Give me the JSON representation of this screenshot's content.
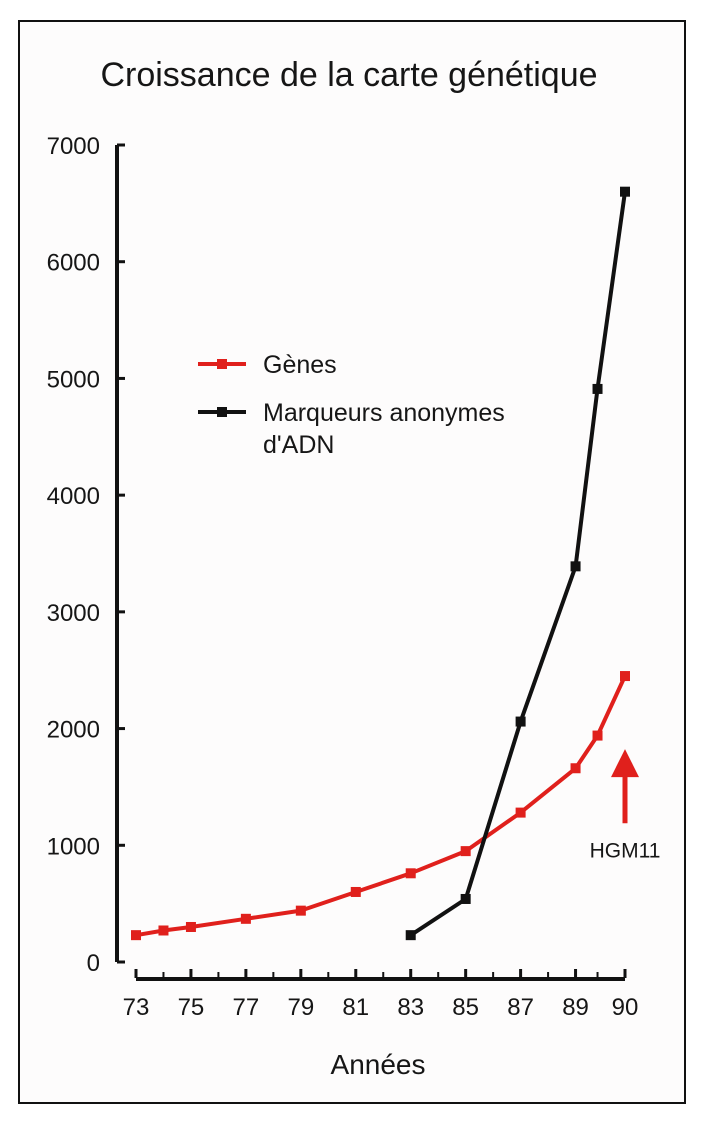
{
  "chart_data": {
    "type": "line",
    "title": "Croissance de la carte génétique",
    "xlabel": "Années",
    "ylabel": "",
    "ylim": [
      0,
      7000
    ],
    "y_ticks": [
      "0",
      "1000",
      "2000",
      "3000",
      "4000",
      "5000",
      "6000",
      "7000"
    ],
    "x_ticks": [
      "73",
      "75",
      "77",
      "79",
      "81",
      "83",
      "85",
      "87",
      "89",
      "90"
    ],
    "legend": "upper-left",
    "series": [
      {
        "name": "Gènes",
        "color": "#e0201c",
        "points": [
          {
            "x": 73,
            "y": 230
          },
          {
            "x": 74,
            "y": 270
          },
          {
            "x": 75,
            "y": 300
          },
          {
            "x": 77,
            "y": 370
          },
          {
            "x": 79,
            "y": 440
          },
          {
            "x": 81,
            "y": 600
          },
          {
            "x": 83,
            "y": 760
          },
          {
            "x": 85,
            "y": 950
          },
          {
            "x": 87,
            "y": 1280
          },
          {
            "x": 89,
            "y": 1660
          },
          {
            "x": 89.8,
            "y": 1940
          },
          {
            "x": 90.8,
            "y": 2450
          }
        ]
      },
      {
        "name": "Marqueurs anonymes d'ADN",
        "color": "#111111",
        "points": [
          {
            "x": 83,
            "y": 230
          },
          {
            "x": 85,
            "y": 540
          },
          {
            "x": 87,
            "y": 2060
          },
          {
            "x": 89,
            "y": 3390
          },
          {
            "x": 89.8,
            "y": 4910
          },
          {
            "x": 90.8,
            "y": 6600
          }
        ]
      }
    ],
    "annotations": [
      {
        "text": "HGM11",
        "x": 90.8,
        "y": 1000,
        "arrow_to_y": 1790,
        "color": "#e0201c"
      }
    ]
  }
}
